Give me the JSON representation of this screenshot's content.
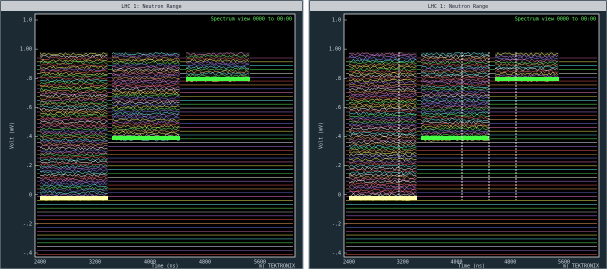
{
  "windows": [
    {
      "title": "LHC 1: Neutron Range",
      "legend": "Spectrum view  0000 to 00:00",
      "y_label": "Volt (mV)",
      "x_label": "Time (ns)",
      "footer": "m) TEKTRONIX",
      "y_ticks": [
        "1.0",
        "1.00",
        ".8",
        ".6",
        ".4",
        ".2",
        "0",
        "-.2",
        "-.4"
      ],
      "x_ticks": [
        "2400",
        "3200",
        "4000",
        "4800",
        "5600"
      ]
    },
    {
      "title": "LHC 1: Neutron Range",
      "legend": "Spectrum view  0000 to 00:00",
      "y_label": "Volt (mV)",
      "x_label": "Time (ns)",
      "footer": "m) TEKTRONIX",
      "y_ticks": [
        "1.0",
        "1.00",
        ".8",
        ".6",
        ".4",
        ".2",
        "0",
        "-.2",
        "-.4"
      ],
      "x_ticks": [
        "2400",
        "3200",
        "4000",
        "4800",
        "5600"
      ]
    }
  ]
}
